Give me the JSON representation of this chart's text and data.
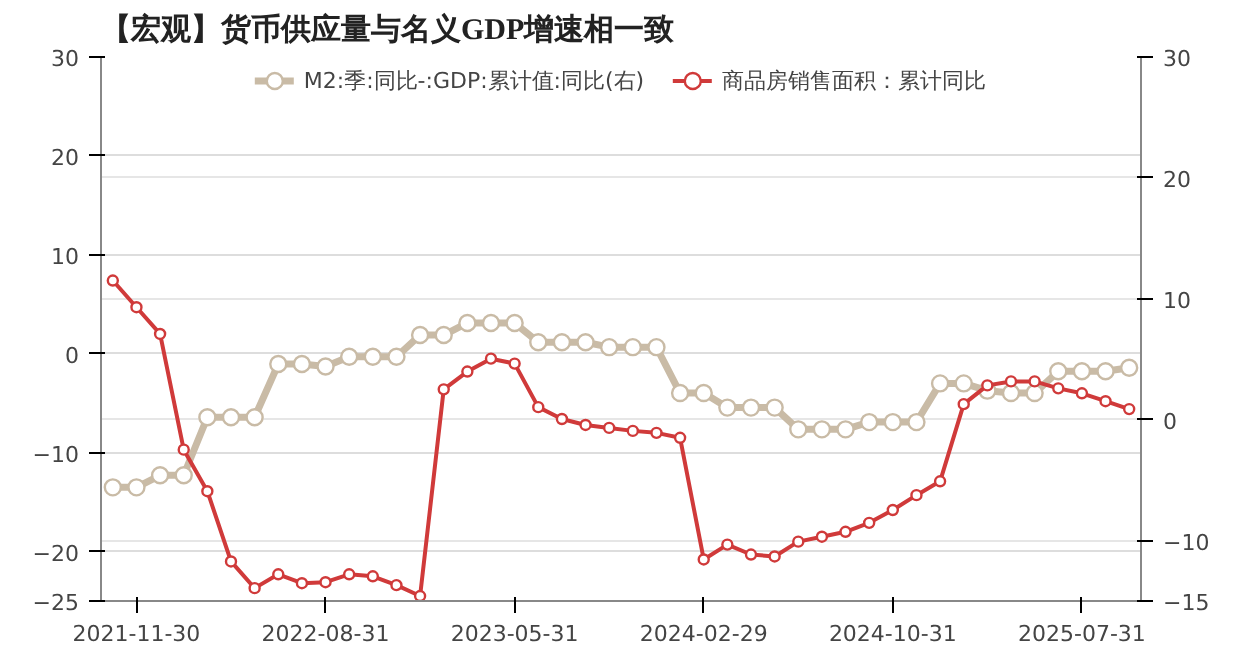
{
  "chart_data": {
    "type": "line",
    "title": "【宏观】货币供应量与名义GDP增速相一致",
    "categories": [
      null,
      "2021-11-30",
      null,
      null,
      null,
      null,
      null,
      null,
      null,
      "2022-08-31",
      null,
      null,
      null,
      null,
      null,
      null,
      null,
      "2023-05-31",
      null,
      null,
      null,
      null,
      null,
      null,
      null,
      "2024-02-29",
      null,
      null,
      null,
      null,
      null,
      null,
      null,
      "2024-10-31",
      null,
      null,
      null,
      null,
      null,
      null,
      null,
      "2025-07-31",
      null,
      null
    ],
    "series": [
      {
        "name": "M2:季:同比-:GDP:累计值:同比(右)",
        "color": "#c9bba6",
        "axis": "y2",
        "values": [
          -5.6,
          -5.6,
          -4.6,
          -4.6,
          0.2,
          0.2,
          0.2,
          4.6,
          4.6,
          4.4,
          5.2,
          5.2,
          5.2,
          7.0,
          7.0,
          8.0,
          8.0,
          8.0,
          6.4,
          6.4,
          6.4,
          6.0,
          6.0,
          6.0,
          2.2,
          2.2,
          1.0,
          1.0,
          1.0,
          -0.8,
          -0.8,
          -0.8,
          -0.2,
          -0.2,
          -0.2,
          3.0,
          3.0,
          2.4,
          2.2,
          2.2,
          4.0,
          4.0,
          4.0,
          4.3
        ]
      },
      {
        "name": "商品房销售面积：累计同比",
        "color": "#d03a3a",
        "values": [
          7.4,
          4.7,
          2.0,
          -9.7,
          -13.9,
          -21.0,
          -23.7,
          -22.3,
          -23.2,
          -23.1,
          -22.3,
          -22.5,
          -23.4,
          -24.5,
          -3.6,
          -1.8,
          -0.5,
          -1.0,
          -5.4,
          -6.6,
          -7.2,
          -7.5,
          -7.8,
          -8.0,
          -8.5,
          -20.8,
          -19.3,
          -20.3,
          -20.5,
          -19.0,
          -18.5,
          -18.0,
          -17.1,
          -15.8,
          -14.3,
          -12.9,
          -5.1,
          -3.2,
          -2.8,
          -2.8,
          -3.5,
          -4.0,
          -4.8,
          -5.6
        ]
      }
    ],
    "ylim": [
      -25,
      30
    ],
    "yticks": [
      -25,
      -20,
      -10,
      0,
      10,
      20,
      30
    ],
    "y2lim": [
      -15,
      30
    ],
    "y2ticks": [
      -15,
      -10,
      0,
      10,
      20,
      30
    ],
    "grid": true,
    "legend": "top",
    "marker": "circle",
    "line_style": "solid"
  }
}
